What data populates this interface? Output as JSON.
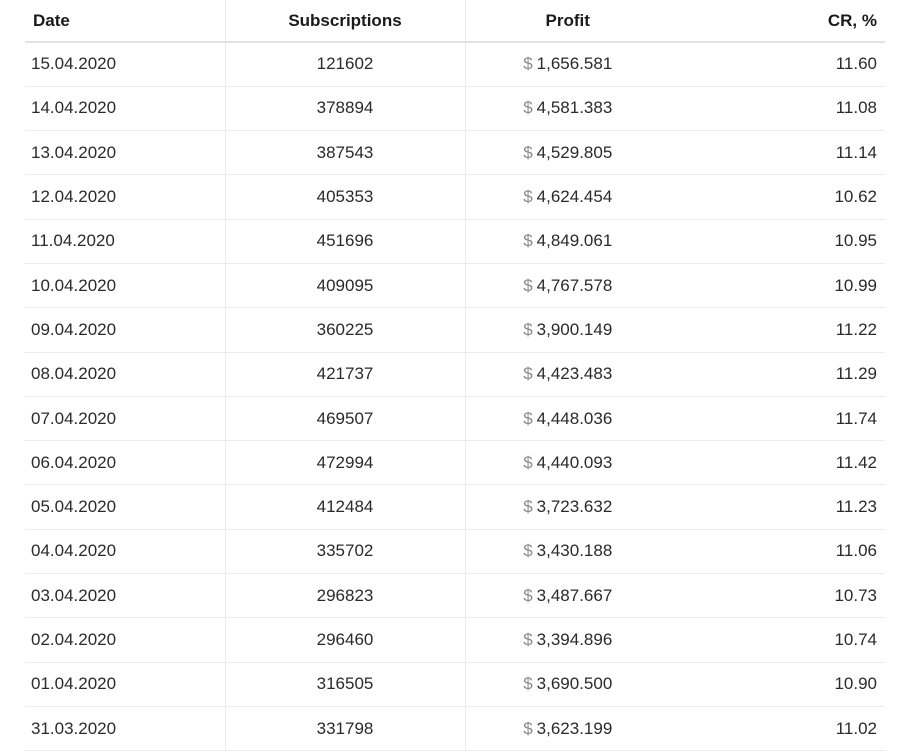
{
  "table": {
    "headers": {
      "date": "Date",
      "subscriptions": "Subscriptions",
      "profit": "Profit",
      "cr": "CR, %"
    },
    "currency_symbol": "$",
    "rows": [
      {
        "date": "15.04.2020",
        "subscriptions": "121602",
        "profit": "1,656.581",
        "cr": "11.60"
      },
      {
        "date": "14.04.2020",
        "subscriptions": "378894",
        "profit": "4,581.383",
        "cr": "11.08"
      },
      {
        "date": "13.04.2020",
        "subscriptions": "387543",
        "profit": "4,529.805",
        "cr": "11.14"
      },
      {
        "date": "12.04.2020",
        "subscriptions": "405353",
        "profit": "4,624.454",
        "cr": "10.62"
      },
      {
        "date": "11.04.2020",
        "subscriptions": "451696",
        "profit": "4,849.061",
        "cr": "10.95"
      },
      {
        "date": "10.04.2020",
        "subscriptions": "409095",
        "profit": "4,767.578",
        "cr": "10.99"
      },
      {
        "date": "09.04.2020",
        "subscriptions": "360225",
        "profit": "3,900.149",
        "cr": "11.22"
      },
      {
        "date": "08.04.2020",
        "subscriptions": "421737",
        "profit": "4,423.483",
        "cr": "11.29"
      },
      {
        "date": "07.04.2020",
        "subscriptions": "469507",
        "profit": "4,448.036",
        "cr": "11.74"
      },
      {
        "date": "06.04.2020",
        "subscriptions": "472994",
        "profit": "4,440.093",
        "cr": "11.42"
      },
      {
        "date": "05.04.2020",
        "subscriptions": "412484",
        "profit": "3,723.632",
        "cr": "11.23"
      },
      {
        "date": "04.04.2020",
        "subscriptions": "335702",
        "profit": "3,430.188",
        "cr": "11.06"
      },
      {
        "date": "03.04.2020",
        "subscriptions": "296823",
        "profit": "3,487.667",
        "cr": "10.73"
      },
      {
        "date": "02.04.2020",
        "subscriptions": "296460",
        "profit": "3,394.896",
        "cr": "10.74"
      },
      {
        "date": "01.04.2020",
        "subscriptions": "316505",
        "profit": "3,690.500",
        "cr": "10.90"
      },
      {
        "date": "31.03.2020",
        "subscriptions": "331798",
        "profit": "3,623.199",
        "cr": "11.02"
      }
    ]
  }
}
